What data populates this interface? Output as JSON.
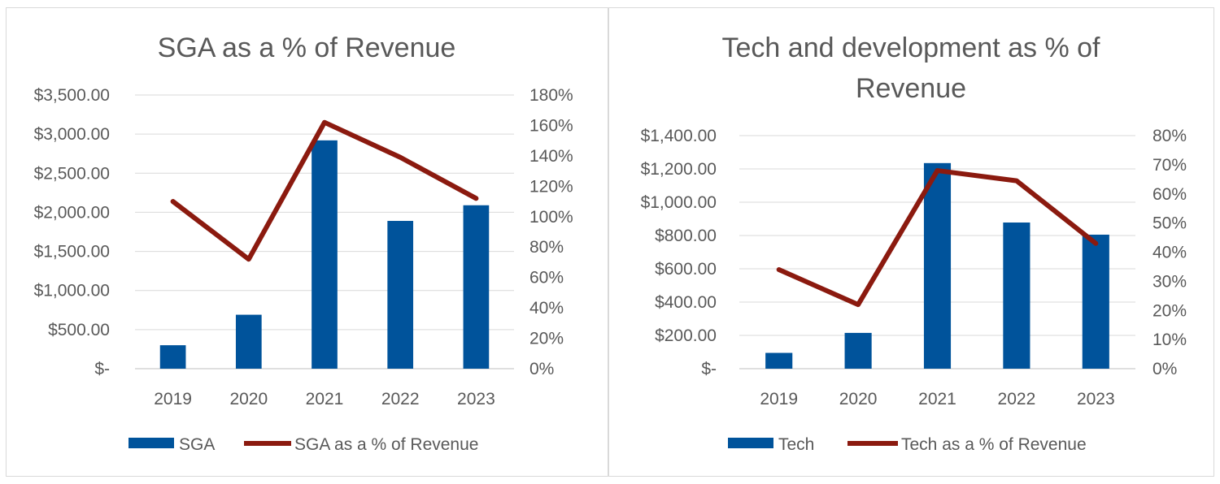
{
  "charts": [
    {
      "title_lines": [
        "SGA as a % of Revenue"
      ],
      "chart_data": {
        "type": "bar",
        "title": "SGA as a % of Revenue",
        "categories": [
          "2019",
          "2020",
          "2021",
          "2022",
          "2023"
        ],
        "series": [
          {
            "name": "SGA",
            "type": "bar",
            "axis": "primary",
            "color": "#00539b",
            "values": [
              300,
              690,
              2920,
              1890,
              2090
            ]
          },
          {
            "name": "SGA as a % of Revenue",
            "type": "line",
            "axis": "secondary",
            "color": "#8b1a0f",
            "values": [
              1.1,
              0.72,
              1.62,
              1.39,
              1.12
            ]
          }
        ],
        "ylim": [
          0,
          3500
        ],
        "y_ticks": [
          "$-",
          "$500.00",
          "$1,000.00",
          "$1,500.00",
          "$2,000.00",
          "$2,500.00",
          "$3,000.00",
          "$3,500.00"
        ],
        "y2lim": [
          0,
          1.8
        ],
        "y2_ticks": [
          "0%",
          "20%",
          "40%",
          "60%",
          "80%",
          "100%",
          "120%",
          "140%",
          "160%",
          "180%"
        ],
        "grid": true,
        "legend": "bottom"
      }
    },
    {
      "title_lines": [
        "Tech and development as % of",
        "Revenue"
      ],
      "chart_data": {
        "type": "bar",
        "title": "Tech and development as % of Revenue",
        "categories": [
          "2019",
          "2020",
          "2021",
          "2022",
          "2023"
        ],
        "series": [
          {
            "name": "Tech",
            "type": "bar",
            "axis": "primary",
            "color": "#00539b",
            "values": [
              95,
              215,
              1235,
              878,
              805
            ]
          },
          {
            "name": "Tech as a % of Revenue",
            "type": "line",
            "axis": "secondary",
            "color": "#8b1a0f",
            "values": [
              0.34,
              0.22,
              0.68,
              0.645,
              0.43
            ]
          }
        ],
        "ylim": [
          0,
          1400
        ],
        "y_ticks": [
          "$-",
          "$200.00",
          "$400.00",
          "$600.00",
          "$800.00",
          "$1,000.00",
          "$1,200.00",
          "$1,400.00"
        ],
        "y2lim": [
          0,
          0.8
        ],
        "y2_ticks": [
          "0%",
          "10%",
          "20%",
          "30%",
          "40%",
          "50%",
          "60%",
          "70%",
          "80%"
        ],
        "grid": true,
        "legend": "bottom"
      }
    }
  ]
}
